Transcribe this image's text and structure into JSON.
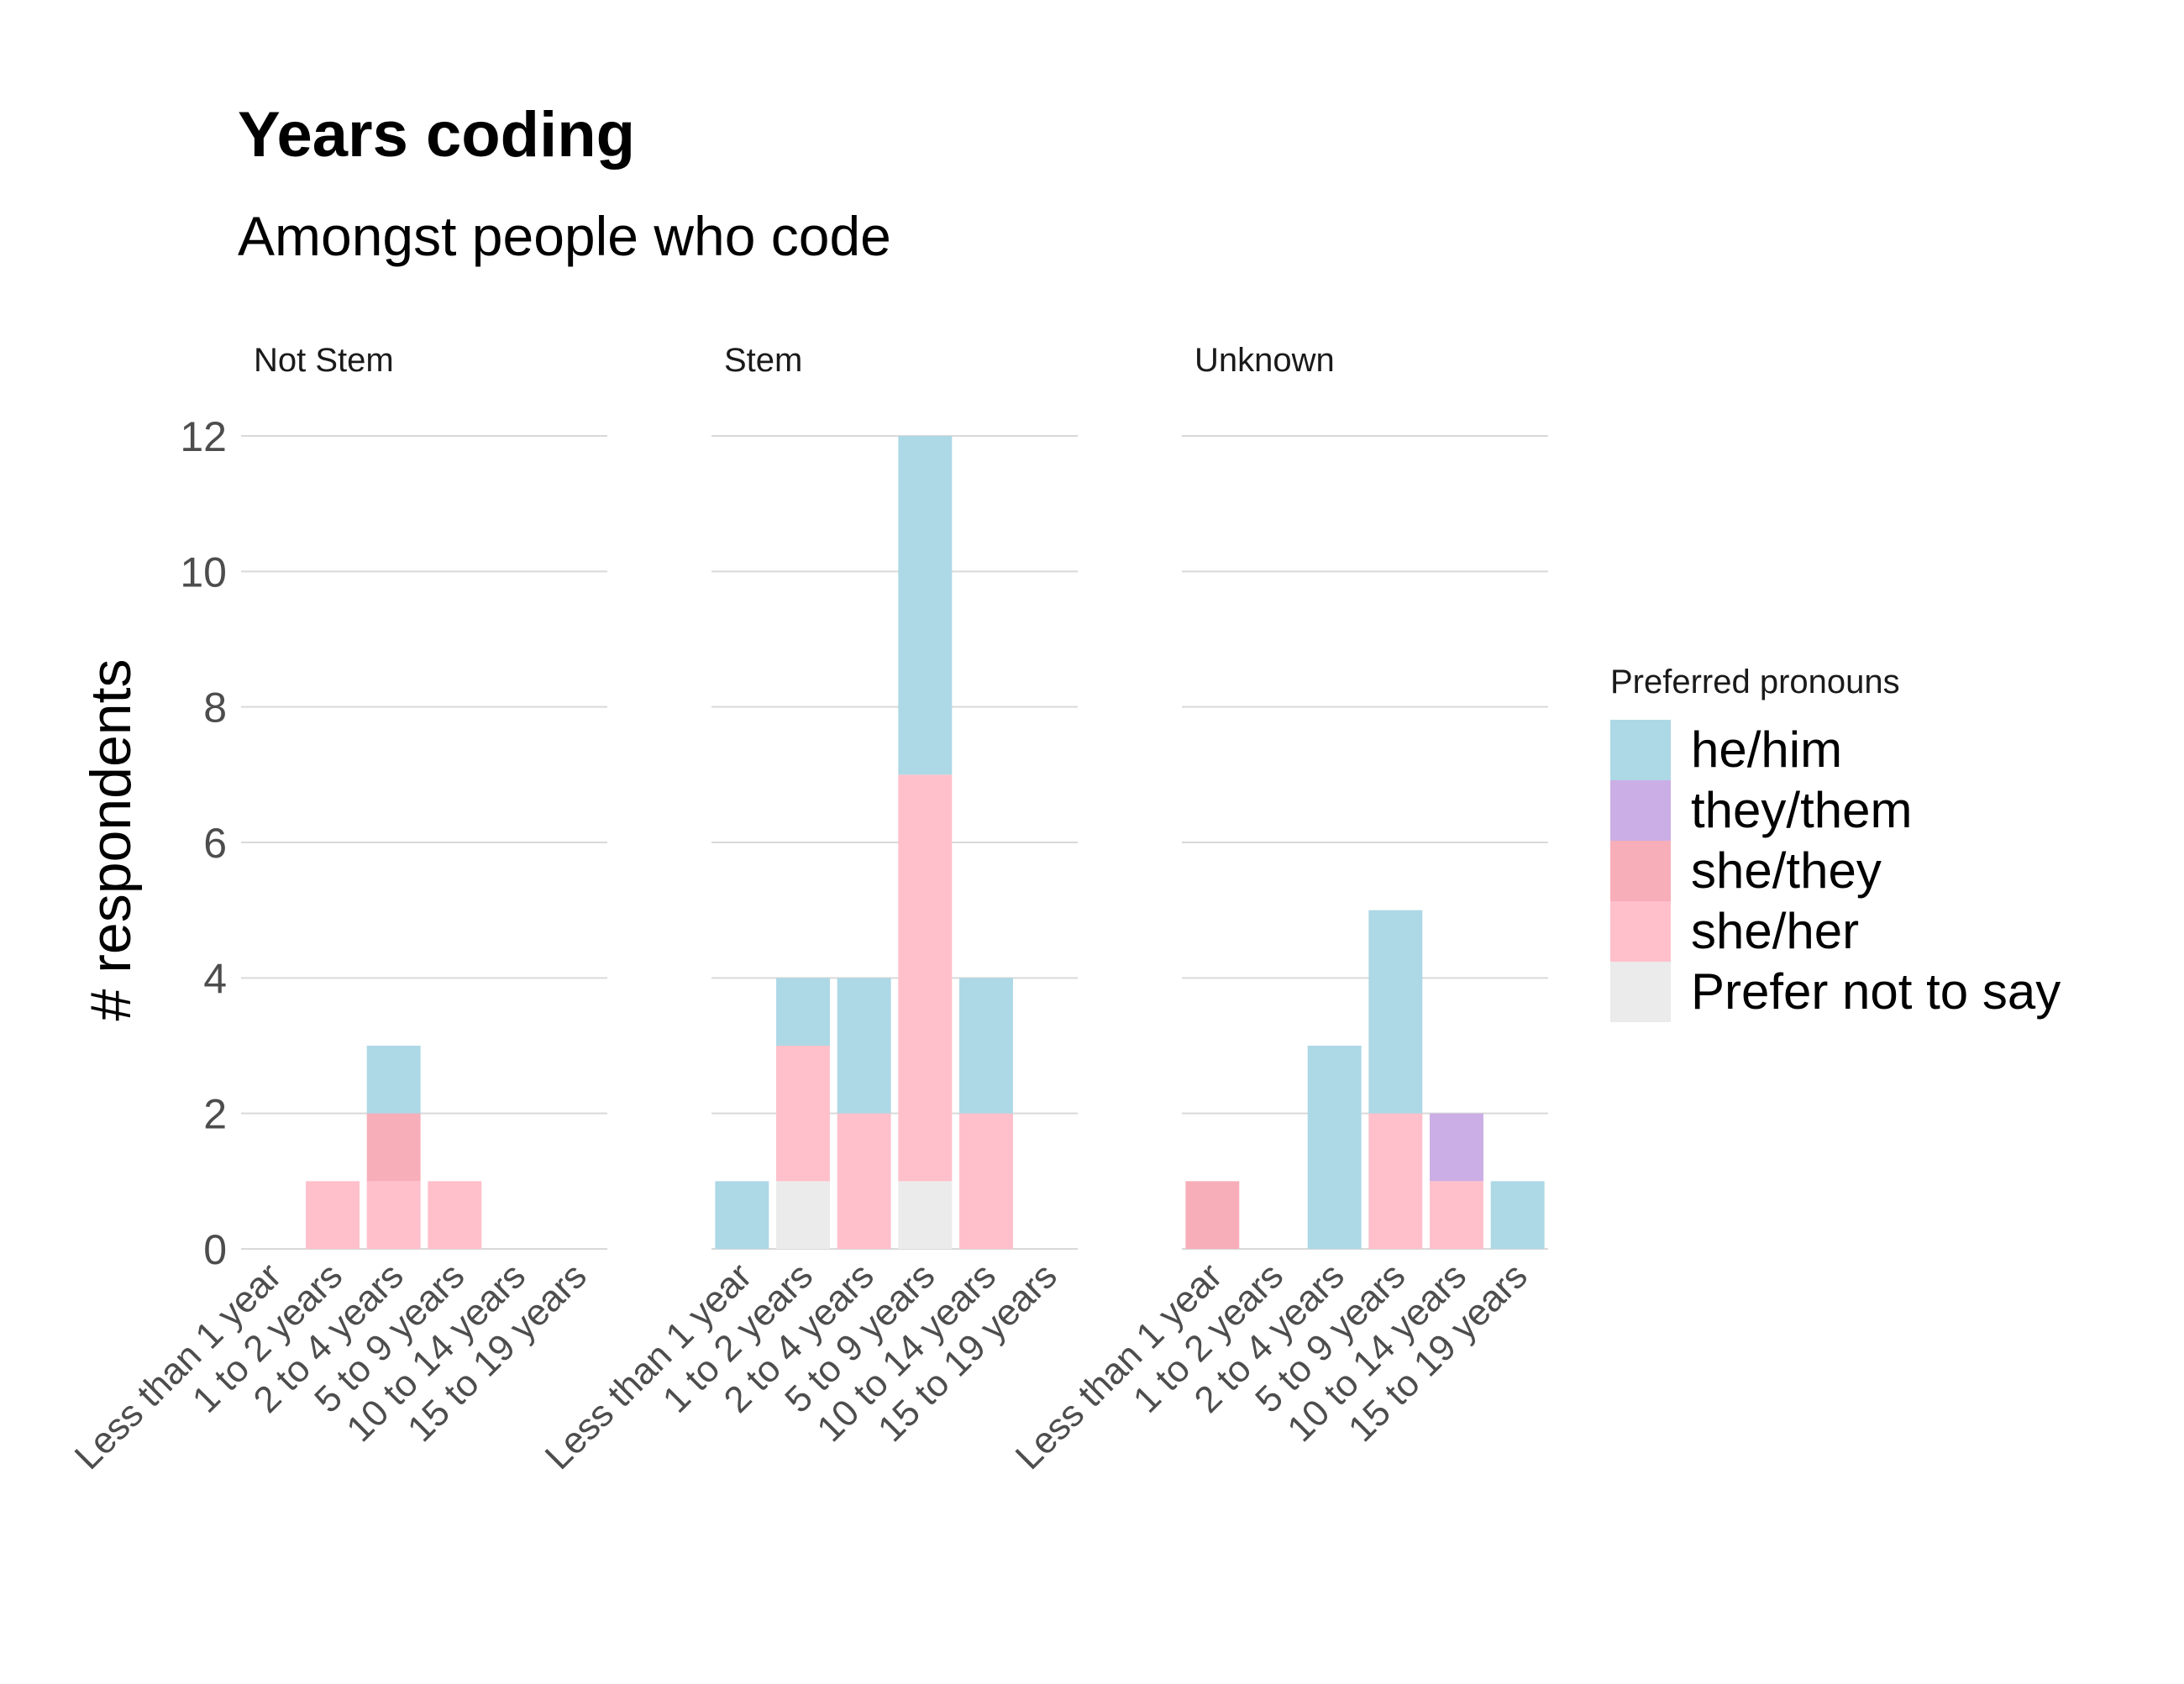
{
  "chart_data": {
    "type": "bar",
    "stacked": true,
    "title": "Years coding",
    "subtitle": "Amongst people who code",
    "ylabel": "# respondents",
    "xlabel": "",
    "ylim": [
      0,
      12
    ],
    "yticks": [
      "0",
      "2",
      "4",
      "6",
      "8",
      "10",
      "12"
    ],
    "grid": true,
    "legend_position": "right",
    "legend_title": "Preferred pronouns",
    "categories": [
      "Less than 1 year",
      "1 to 2 years",
      "2 to 4 years",
      "5 to 9 years",
      "10 to 14 years",
      "15 to 19 years"
    ],
    "stack_order": [
      "Prefer not to say",
      "she/her",
      "she/they",
      "they/them",
      "he/him"
    ],
    "legend_order": [
      "he/him",
      "they/them",
      "she/they",
      "she/her",
      "Prefer not to say"
    ],
    "colors": {
      "he/him": "#add8e6",
      "they/them": "#cbaee5",
      "she/they": "#f7aeb9",
      "she/her": "#ffc0cb",
      "Prefer not to say": "#ebebeb"
    },
    "facets": [
      {
        "name": "Not Stem",
        "series": [
          {
            "name": "Prefer not to say",
            "values": [
              0,
              0,
              0,
              0,
              0,
              0
            ]
          },
          {
            "name": "she/her",
            "values": [
              0,
              1,
              1,
              1,
              0,
              0
            ]
          },
          {
            "name": "she/they",
            "values": [
              0,
              0,
              1,
              0,
              0,
              0
            ]
          },
          {
            "name": "they/them",
            "values": [
              0,
              0,
              0,
              0,
              0,
              0
            ]
          },
          {
            "name": "he/him",
            "values": [
              0,
              0,
              1,
              0,
              0,
              0
            ]
          }
        ]
      },
      {
        "name": "Stem",
        "series": [
          {
            "name": "Prefer not to say",
            "values": [
              0,
              1,
              0,
              1,
              0,
              0
            ]
          },
          {
            "name": "she/her",
            "values": [
              0,
              2,
              2,
              6,
              2,
              0
            ]
          },
          {
            "name": "she/they",
            "values": [
              0,
              0,
              0,
              0,
              0,
              0
            ]
          },
          {
            "name": "they/them",
            "values": [
              0,
              0,
              0,
              0,
              0,
              0
            ]
          },
          {
            "name": "he/him",
            "values": [
              1,
              1,
              2,
              5,
              2,
              0
            ]
          }
        ]
      },
      {
        "name": "Unknown",
        "series": [
          {
            "name": "Prefer not to say",
            "values": [
              0,
              0,
              0,
              0,
              0,
              0
            ]
          },
          {
            "name": "she/her",
            "values": [
              0,
              0,
              0,
              2,
              1,
              0
            ]
          },
          {
            "name": "she/they",
            "values": [
              1,
              0,
              0,
              0,
              0,
              0
            ]
          },
          {
            "name": "they/them",
            "values": [
              0,
              0,
              0,
              0,
              1,
              0
            ]
          },
          {
            "name": "he/him",
            "values": [
              0,
              0,
              3,
              3,
              0,
              1
            ]
          }
        ]
      }
    ]
  }
}
